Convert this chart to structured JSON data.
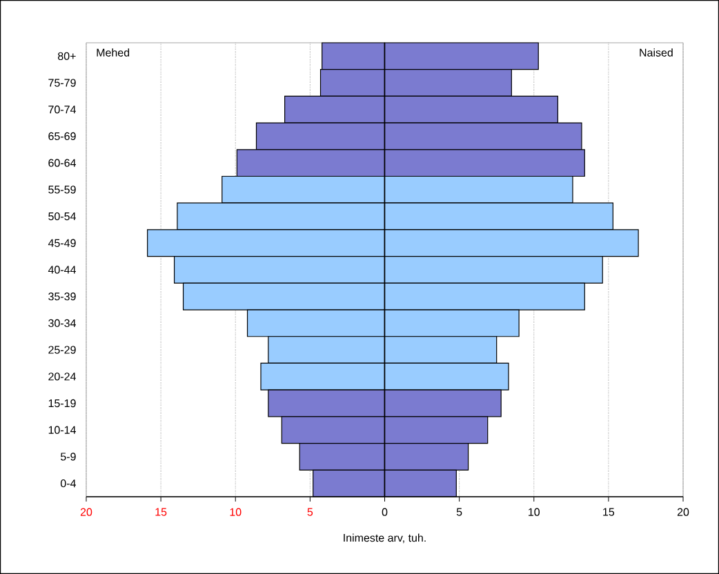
{
  "chart_data": [
    {
      "type": "bar",
      "orientation": "horizontal",
      "categories": [
        "80+",
        "75-79",
        "70-74",
        "65-69",
        "60-64",
        "55-59",
        "50-54",
        "45-49",
        "40-44",
        "35-39",
        "30-34",
        "25-29",
        "20-24",
        "15-19",
        "10-14",
        "5-9",
        "0-4"
      ],
      "series": [
        {
          "name": "Mehed",
          "values": [
            4.2,
            4.3,
            6.7,
            8.6,
            9.9,
            10.9,
            13.9,
            15.9,
            14.1,
            13.5,
            9.2,
            7.8,
            8.3,
            7.8,
            6.9,
            5.7,
            4.8
          ],
          "colors": [
            "#7b7bd0",
            "#7b7bd0",
            "#7b7bd0",
            "#7b7bd0",
            "#7b7bd0",
            "#99ccff",
            "#99ccff",
            "#99ccff",
            "#99ccff",
            "#99ccff",
            "#99ccff",
            "#99ccff",
            "#99ccff",
            "#7b7bd0",
            "#7b7bd0",
            "#7b7bd0",
            "#7b7bd0"
          ]
        }
      ],
      "xlim": [
        20,
        0
      ],
      "xticks": [
        20,
        15,
        10,
        5,
        {
          "value": 0,
          "label": null
        }
      ],
      "grid": "x"
    },
    {
      "type": "bar",
      "orientation": "horizontal",
      "xlabel": "Inimeste arv, tuh.",
      "categories": [
        null,
        null,
        null,
        null,
        null,
        null,
        null,
        null,
        null,
        null,
        null,
        null,
        null,
        null,
        null,
        null,
        null
      ],
      "series": [
        {
          "name": "Naised",
          "values": [
            10.3,
            8.5,
            11.6,
            13.2,
            13.4,
            12.6,
            15.3,
            17.0,
            14.6,
            13.4,
            9.0,
            7.5,
            8.3,
            7.8,
            6.9,
            5.6,
            4.8
          ],
          "colors": [
            "#7b7bd0",
            "#7b7bd0",
            "#7b7bd0",
            "#7b7bd0",
            "#7b7bd0",
            "#99ccff",
            "#99ccff",
            "#99ccff",
            "#99ccff",
            "#99ccff",
            "#99ccff",
            "#99ccff",
            "#99ccff",
            "#7b7bd0",
            "#7b7bd0",
            "#7b7bd0",
            "#7b7bd0"
          ]
        }
      ],
      "xlim": [
        0,
        20
      ],
      "xticks": [
        0,
        5,
        10,
        15,
        20
      ],
      "grid": "x",
      "tick_labels": "x"
    }
  ]
}
